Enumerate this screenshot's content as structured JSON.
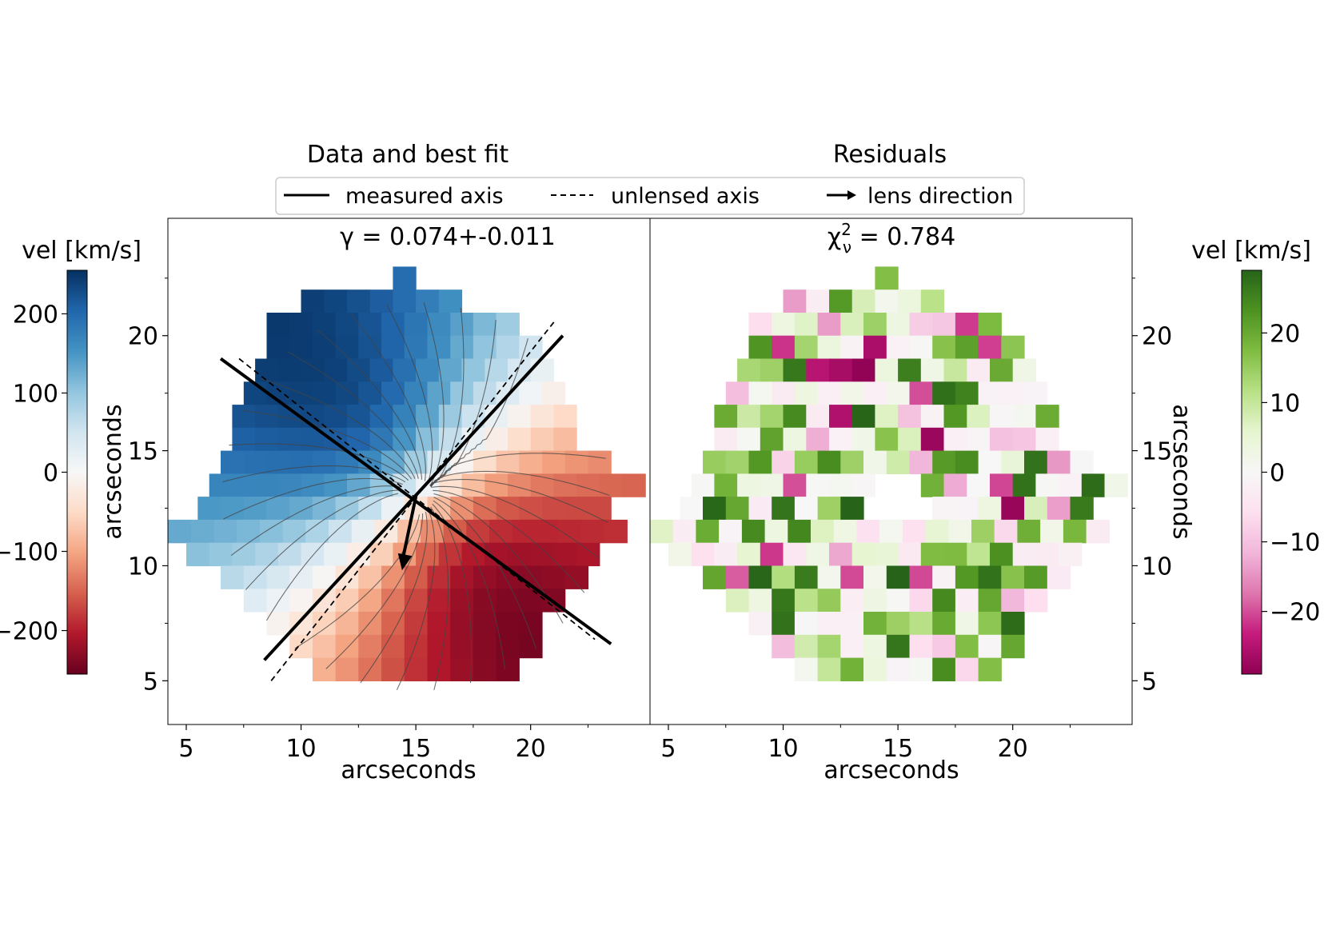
{
  "chart_data": [
    {
      "type": "heatmap",
      "panel": "left",
      "title": "Data and best fit",
      "annotation": "γ = 0.074+-0.011",
      "xlabel": "arcseconds",
      "ylabel": "arcseconds",
      "xlim": [
        4.2,
        25.2
      ],
      "ylim": [
        3.1,
        25.1
      ],
      "xticks": [
        5,
        10,
        15,
        20
      ],
      "yticks": [
        5,
        10,
        15,
        20
      ],
      "colorbar": {
        "label": "vel [km/s]",
        "colormap": "RdBu",
        "range": [
          -255,
          255
        ],
        "ticks": [
          -200,
          -100,
          0,
          100,
          200
        ],
        "tick_labels": [
          "−200",
          "−100",
          "0",
          "100",
          "200"
        ]
      },
      "measured_axis": [
        {
          "x1": 6.5,
          "y1": 19.0,
          "x2": 23.5,
          "y2": 6.6
        },
        {
          "x1": 8.4,
          "y1": 5.9,
          "x2": 21.4,
          "y2": 20.0
        }
      ],
      "unlensed_axis": [
        {
          "x1": 7.3,
          "y1": 19.0,
          "x2": 22.8,
          "y2": 6.8
        },
        {
          "x1": 8.7,
          "y1": 5.0,
          "x2": 21.1,
          "y2": 20.7
        }
      ],
      "lens_direction": {
        "x0": 15.0,
        "y0": 13.0,
        "x1": 14.4,
        "y1": 9.8
      }
    },
    {
      "type": "heatmap",
      "panel": "right",
      "title": "Residuals",
      "annotation": "χ²ν = 0.784",
      "annotation_base": "χ",
      "annotation_sup": "2",
      "annotation_sub": "ν",
      "annotation_rest": " = 0.784",
      "xlabel": "arcseconds",
      "ylabel": "arcseconds",
      "xlim": [
        4.2,
        25.2
      ],
      "ylim": [
        3.1,
        25.1
      ],
      "xticks": [
        5,
        10,
        15,
        20
      ],
      "yticks": [
        5,
        10,
        15,
        20
      ],
      "colorbar": {
        "label": "vel [km/s]",
        "colormap": "PiYG",
        "range": [
          -29,
          29
        ],
        "ticks": [
          -20,
          -10,
          0,
          10,
          20
        ],
        "tick_labels": [
          "−20",
          "−10",
          "0",
          "10",
          "20"
        ]
      }
    }
  ],
  "legend": {
    "items": [
      {
        "label": "measured axis",
        "style": "solid"
      },
      {
        "label": "unlensed axis",
        "style": "dashed"
      },
      {
        "label": "lens direction",
        "style": "arrow"
      }
    ]
  }
}
